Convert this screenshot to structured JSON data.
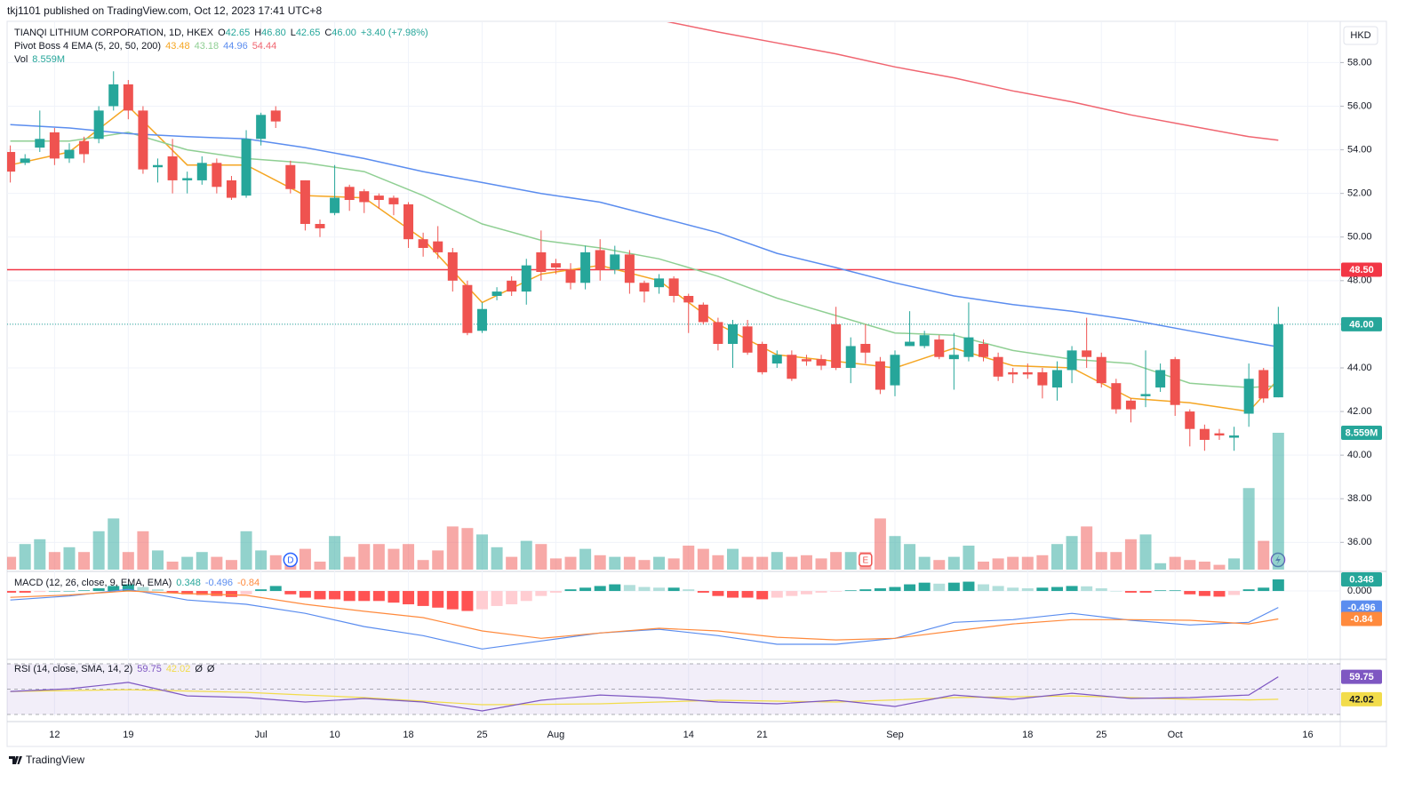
{
  "header": {
    "published": "tkj1101 published on TradingView.com, Oct 12, 2023 17:41 UTC+8",
    "currency": "HKD",
    "logo": "TradingView"
  },
  "chart_data": {
    "type": "candlestick",
    "title": "TIANQI LITHIUM CORPORATION, 1D, HKEX",
    "ohlc_legend": [
      {
        "key": "O",
        "value": "42.65"
      },
      {
        "key": "H",
        "value": "46.80"
      },
      {
        "key": "L",
        "value": "42.65"
      },
      {
        "key": "C",
        "value": "46.00"
      }
    ],
    "change": "+3.40 (+7.98%)",
    "colors": {
      "up": "#26a69a",
      "down": "#ef5350"
    },
    "xlim": [
      -0.7,
      90.2
    ],
    "xticks": [
      {
        "value": 3,
        "label": "12"
      },
      {
        "value": 8,
        "label": "19"
      },
      {
        "value": 17,
        "label": "Jul"
      },
      {
        "value": 22,
        "label": "10"
      },
      {
        "value": 27,
        "label": "18"
      },
      {
        "value": 32,
        "label": "25"
      },
      {
        "value": 37,
        "label": "Aug"
      },
      {
        "value": 46,
        "label": "14"
      },
      {
        "value": 51,
        "label": "21"
      },
      {
        "value": 60,
        "label": "Sep"
      },
      {
        "value": 69,
        "label": "18"
      },
      {
        "value": 74,
        "label": "25"
      },
      {
        "value": 79,
        "label": "Oct"
      },
      {
        "value": 88,
        "label": "16"
      }
    ],
    "ylim": [
      34.75,
      59.85
    ],
    "yticks": [
      {
        "value": 36,
        "label": "36.00"
      },
      {
        "value": 38,
        "label": "38.00"
      },
      {
        "value": 40,
        "label": "40.00"
      },
      {
        "value": 42,
        "label": "42.00"
      },
      {
        "value": 44,
        "label": "44.00"
      },
      {
        "value": 46,
        "label": "46.00"
      },
      {
        "value": 48,
        "label": "48.00"
      },
      {
        "value": 50,
        "label": "50.00"
      },
      {
        "value": 52,
        "label": "52.00"
      },
      {
        "value": 54,
        "label": "54.00"
      },
      {
        "value": 56,
        "label": "56.00"
      },
      {
        "value": 58,
        "label": "58.00"
      }
    ],
    "open": [
      53.9,
      53.4,
      54.1,
      54.8,
      53.6,
      54.4,
      54.5,
      56.0,
      57.0,
      55.8,
      53.2,
      53.7,
      52.6,
      52.6,
      53.4,
      52.6,
      51.9,
      54.5,
      55.8,
      53.3,
      52.6,
      50.6,
      51.1,
      52.3,
      52.1,
      51.9,
      51.8,
      51.5,
      49.9,
      49.8,
      49.3,
      47.8,
      45.7,
      47.3,
      48.0,
      47.5,
      49.3,
      48.8,
      48.5,
      47.9,
      49.4,
      48.5,
      49.2,
      47.9,
      47.7,
      48.1,
      47.3,
      46.9,
      46.1,
      45.1,
      45.9,
      45.1,
      44.2,
      44.6,
      44.4,
      44.4,
      46.0,
      44.0,
      45.1,
      44.3,
      43.2,
      45.0,
      45.0,
      45.3,
      44.4,
      44.5,
      45.1,
      44.5,
      43.8,
      43.8,
      43.8,
      43.1,
      43.9,
      44.8,
      44.5,
      43.3,
      42.5,
      42.7,
      43.1,
      44.4,
      42.0,
      41.2,
      41.0,
      40.8,
      41.9,
      43.9,
      42.65
    ],
    "high": [
      54.2,
      53.8,
      55.8,
      55.0,
      54.3,
      54.6,
      56.0,
      57.6,
      57.2,
      56.0,
      53.6,
      54.5,
      53.0,
      53.7,
      53.6,
      52.8,
      54.9,
      55.7,
      56.0,
      53.5,
      52.6,
      50.8,
      53.3,
      52.4,
      52.2,
      52.0,
      51.9,
      51.6,
      50.2,
      50.5,
      49.5,
      48.0,
      47.0,
      47.7,
      48.2,
      49.0,
      50.3,
      49.0,
      48.8,
      49.6,
      49.9,
      49.6,
      49.4,
      48.0,
      48.3,
      48.2,
      47.4,
      47.0,
      46.3,
      46.2,
      46.2,
      45.2,
      44.8,
      44.8,
      44.6,
      44.6,
      46.8,
      45.4,
      46.0,
      44.5,
      44.8,
      46.6,
      45.7,
      45.5,
      45.6,
      47.0,
      45.3,
      44.7,
      44.0,
      44.2,
      44.0,
      44.3,
      45.0,
      46.3,
      44.7,
      43.5,
      42.6,
      44.8,
      44.2,
      44.5,
      42.1,
      41.4,
      41.2,
      41.3,
      44.2,
      44.0,
      46.8
    ],
    "low": [
      52.5,
      53.3,
      53.9,
      53.3,
      53.4,
      53.4,
      54.3,
      55.8,
      55.4,
      52.9,
      52.5,
      52.0,
      52.0,
      52.4,
      52.0,
      51.7,
      51.8,
      54.2,
      55.0,
      52.0,
      50.3,
      50.0,
      51.0,
      51.2,
      51.1,
      51.3,
      51.0,
      49.5,
      49.1,
      49.0,
      47.5,
      45.5,
      45.6,
      47.1,
      47.3,
      46.9,
      48.0,
      48.3,
      47.6,
      47.6,
      48.0,
      48.3,
      47.4,
      47.0,
      47.4,
      47.0,
      45.6,
      46.0,
      44.8,
      44.0,
      44.6,
      43.7,
      44.0,
      43.4,
      44.1,
      43.9,
      43.9,
      43.3,
      44.2,
      42.8,
      42.7,
      45.0,
      44.9,
      44.4,
      43.0,
      44.3,
      44.3,
      43.4,
      43.3,
      43.5,
      42.6,
      42.5,
      43.3,
      44.0,
      43.1,
      41.9,
      41.5,
      42.2,
      42.9,
      41.8,
      40.4,
      40.2,
      40.7,
      40.2,
      41.3,
      42.4,
      42.65
    ],
    "close": [
      53.0,
      53.6,
      54.5,
      53.6,
      54.0,
      53.8,
      55.8,
      57.0,
      55.8,
      53.1,
      53.3,
      52.6,
      52.7,
      53.4,
      52.3,
      51.8,
      54.5,
      55.6,
      55.3,
      52.2,
      50.6,
      50.4,
      51.8,
      51.7,
      51.6,
      51.7,
      51.5,
      49.9,
      49.5,
      49.3,
      48.0,
      45.6,
      46.7,
      47.5,
      47.5,
      48.7,
      48.4,
      48.6,
      47.9,
      49.3,
      48.5,
      49.2,
      47.9,
      47.5,
      48.1,
      47.3,
      47.0,
      46.1,
      45.1,
      46.0,
      44.7,
      43.8,
      44.6,
      43.5,
      44.3,
      44.1,
      44.0,
      45.0,
      44.7,
      43.0,
      44.6,
      45.2,
      45.5,
      44.5,
      44.6,
      45.4,
      44.5,
      43.6,
      43.7,
      43.7,
      43.2,
      43.9,
      44.8,
      44.5,
      43.3,
      42.1,
      42.1,
      42.8,
      43.9,
      42.3,
      41.2,
      40.7,
      40.9,
      40.9,
      43.5,
      42.6,
      46.0
    ],
    "price_line": {
      "value": 46,
      "label": "46.00"
    },
    "hline": {
      "value": 48.5,
      "label": "48.50",
      "color": "#f23645"
    },
    "events": [
      {
        "x": 19,
        "label": "D"
      },
      {
        "x": 58,
        "label": "E"
      }
    ],
    "line_x": [
      0,
      4,
      8,
      12,
      16,
      20,
      24,
      28,
      32,
      36,
      40,
      44,
      48,
      52,
      56,
      60,
      64,
      68,
      72,
      76,
      80,
      84,
      86
    ],
    "indicator": {
      "name": "Pivot Boss 4 EMA (5, 20, 50, 200)",
      "series": [
        {
          "color": "#f5a623",
          "legend": "43.48",
          "values": [
            53.3,
            53.9,
            56.0,
            53.3,
            53.3,
            51.9,
            51.8,
            49.9,
            47.0,
            48.3,
            48.7,
            48.0,
            46.0,
            44.6,
            44.3,
            44.0,
            44.9,
            44.1,
            44.0,
            42.6,
            42.4,
            42.0,
            43.48
          ]
        },
        {
          "color": "#8fcf93",
          "legend": "43.18",
          "values": [
            54.4,
            54.4,
            54.8,
            54.0,
            53.6,
            53.4,
            53.0,
            51.9,
            50.6,
            49.85,
            49.5,
            49.0,
            48.2,
            47.2,
            46.4,
            45.6,
            45.5,
            44.8,
            44.4,
            44.2,
            43.3,
            43.1,
            43.18
          ]
        },
        {
          "color": "#5b8def",
          "legend": "44.96",
          "values": [
            55.15,
            55.0,
            54.74,
            54.6,
            54.5,
            54.1,
            53.6,
            53.0,
            52.5,
            52.0,
            51.6,
            50.9,
            50.2,
            49.25,
            48.6,
            47.9,
            47.3,
            46.9,
            46.6,
            46.2,
            45.7,
            45.2,
            44.96
          ]
        },
        {
          "color": "#f06570",
          "legend": "54.44",
          "values": [
            null,
            null,
            null,
            null,
            null,
            null,
            null,
            null,
            null,
            null,
            null,
            59.95,
            59.4,
            58.9,
            58.4,
            57.8,
            57.3,
            56.7,
            56.2,
            55.6,
            55.1,
            54.6,
            54.44
          ]
        }
      ]
    },
    "volume": {
      "name": "Vol",
      "value_label": "8.559M",
      "values": [
        0.8,
        1.6,
        1.9,
        1.1,
        1.4,
        1.1,
        2.4,
        3.2,
        1.1,
        2.4,
        1.2,
        0.5,
        0.8,
        1.1,
        0.8,
        0.6,
        2.4,
        1.2,
        0.9,
        0.6,
        1.3,
        0.5,
        2.1,
        0.8,
        1.6,
        1.6,
        1.3,
        1.6,
        0.6,
        1.2,
        2.7,
        2.6,
        2.2,
        1.4,
        0.8,
        1.8,
        1.6,
        0.7,
        0.8,
        1.3,
        0.9,
        0.8,
        0.8,
        0.6,
        0.8,
        0.7,
        1.5,
        1.3,
        0.9,
        1.3,
        0.8,
        0.8,
        1.1,
        0.8,
        0.9,
        0.7,
        1.1,
        1.1,
        1.1,
        3.2,
        2.1,
        1.6,
        0.8,
        0.6,
        0.8,
        1.5,
        0.5,
        0.7,
        0.8,
        0.8,
        0.9,
        1.6,
        2.1,
        2.7,
        1.1,
        1.1,
        1.9,
        2.2,
        0.4,
        0.8,
        0.6,
        0.5,
        0.3,
        0.7,
        5.1,
        1.8,
        8.559
      ]
    },
    "macd": {
      "name": "MACD (12, 26, close, 9, EMA, EMA)",
      "ylim": [
        -2.0,
        0.535
      ],
      "yticks": [
        {
          "value": 0,
          "label": "0.000"
        }
      ],
      "histogram": {
        "legend": "0.348",
        "values": [
          -0.05,
          -0.05,
          -0.03,
          0,
          0,
          0.02,
          0.08,
          0.15,
          0.2,
          0.12,
          0.05,
          -0.05,
          -0.1,
          -0.12,
          -0.15,
          -0.18,
          -0.1,
          0.05,
          0.15,
          -0.1,
          -0.2,
          -0.25,
          -0.25,
          -0.3,
          -0.3,
          -0.3,
          -0.35,
          -0.4,
          -0.45,
          -0.5,
          -0.55,
          -0.6,
          -0.55,
          -0.45,
          -0.4,
          -0.3,
          -0.15,
          -0.05,
          0.05,
          0.1,
          0.15,
          0.2,
          0.18,
          0.12,
          0.1,
          0.1,
          0.05,
          -0.05,
          -0.15,
          -0.2,
          -0.2,
          -0.25,
          -0.2,
          -0.15,
          -0.1,
          -0.05,
          -0.02,
          0.02,
          0.05,
          0.08,
          0.12,
          0.2,
          0.25,
          0.22,
          0.25,
          0.28,
          0.2,
          0.15,
          0.1,
          0.08,
          0.1,
          0.12,
          0.15,
          0.14,
          0.08,
          0,
          -0.05,
          -0.05,
          0.02,
          0.02,
          -0.1,
          -0.15,
          -0.17,
          -0.12,
          0.05,
          0.1,
          0.348
        ]
      },
      "macd": {
        "color": "#5b8def",
        "legend": "-0.496",
        "values": [
          -0.27,
          -0.15,
          0.05,
          -0.27,
          -0.4,
          -0.67,
          -1.07,
          -1.34,
          -1.74,
          -1.5,
          -1.26,
          -1.15,
          -1.34,
          -1.6,
          -1.6,
          -1.42,
          -0.94,
          -0.86,
          -0.67,
          -0.88,
          -1.02,
          -0.94,
          -0.496
        ]
      },
      "signal": {
        "color": "#ff8a3d",
        "legend": "-0.84",
        "values": [
          -0.19,
          -0.12,
          0,
          -0.08,
          -0.13,
          -0.4,
          -0.61,
          -0.8,
          -1.2,
          -1.42,
          -1.26,
          -1.12,
          -1.2,
          -1.39,
          -1.47,
          -1.42,
          -1.2,
          -0.99,
          -0.86,
          -0.86,
          -0.88,
          -0.99,
          -0.84
        ]
      }
    },
    "rsi": {
      "name": "RSI (14, close, SMA, 14, 2)",
      "ylim": [
        28.6,
        71.4
      ],
      "levels": [
        70,
        50,
        30
      ],
      "extra": [
        "Ø",
        "Ø"
      ],
      "rsi": {
        "color": "#7e57c2",
        "legend": "59.75",
        "values": [
          48.2,
          50.3,
          55.3,
          44.7,
          43.3,
          39.8,
          42.6,
          39.8,
          32.8,
          41.2,
          45.4,
          43.3,
          39.8,
          38.4,
          41.2,
          36.3,
          45.4,
          41.9,
          46.8,
          42.6,
          43.3,
          45.4,
          59.75
        ]
      },
      "sma": {
        "color": "#f2dc4b",
        "legend": "42.02",
        "values": [
          48.2,
          48.9,
          49.6,
          48.5,
          47.5,
          45.4,
          43.3,
          40.5,
          37.7,
          38.0,
          38.4,
          39.8,
          41.2,
          40.5,
          39.8,
          41.5,
          43.3,
          44.0,
          44.7,
          43.3,
          41.9,
          41.5,
          42.02
        ]
      }
    }
  }
}
